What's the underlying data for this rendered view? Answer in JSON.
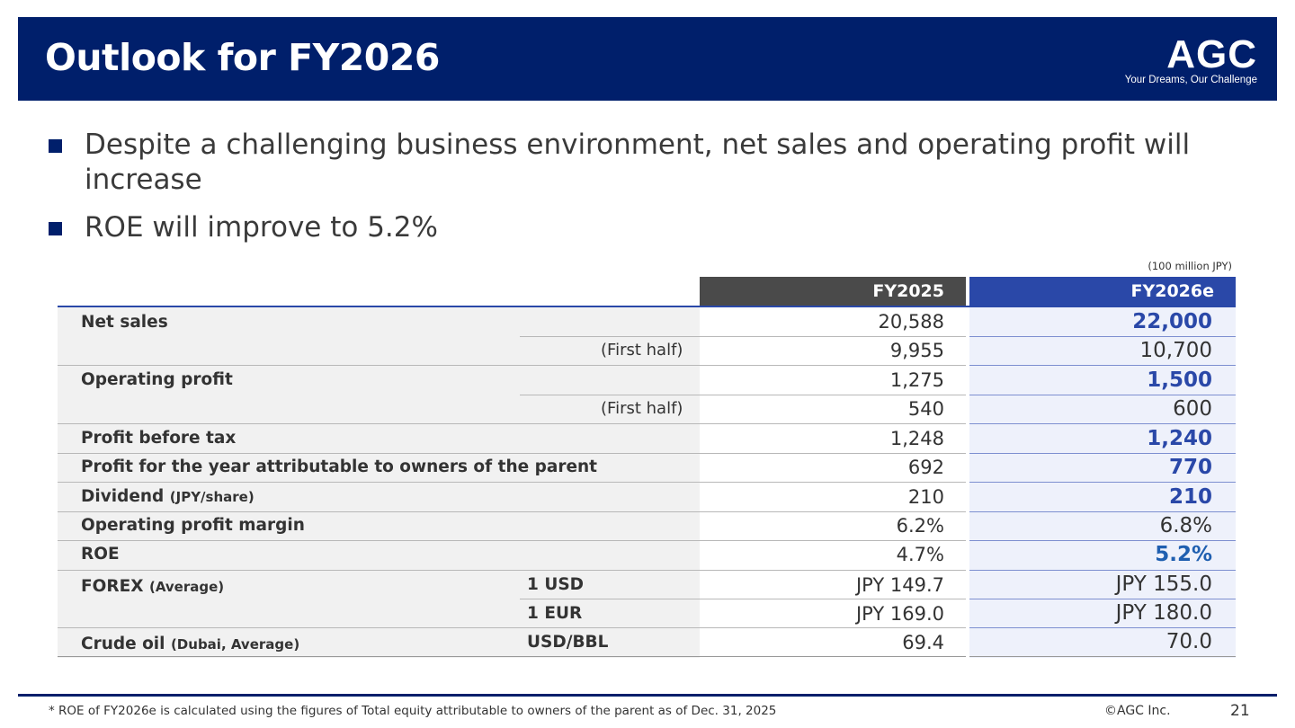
{
  "header": {
    "title": "Outlook for FY2026",
    "logo_mark": "AGC",
    "logo_tagline": "Your Dreams, Our Challenge"
  },
  "bullets": [
    "Despite a challenging business environment, net sales and operating profit will increase",
    "ROE will improve to 5.2%"
  ],
  "table": {
    "unit_note": "(100 million JPY)",
    "col_fy2025": "FY2025",
    "col_fy2026e": "FY2026e",
    "rows": {
      "net_sales": {
        "label": "Net sales",
        "fy2025": "20,588",
        "fy2026e": "22,000"
      },
      "net_sales_h1": {
        "sub": "(First half)",
        "fy2025": "9,955",
        "fy2026e": "10,700"
      },
      "op_profit": {
        "label": "Operating profit",
        "fy2025": "1,275",
        "fy2026e": "1,500"
      },
      "op_profit_h1": {
        "sub": "(First half)",
        "fy2025": "540",
        "fy2026e": "600"
      },
      "pbt": {
        "label": "Profit before tax",
        "fy2025": "1,248",
        "fy2026e": "1,240"
      },
      "profit_owners": {
        "label": "Profit for the year attributable to owners of the parent",
        "fy2025": "692",
        "fy2026e": "770"
      },
      "dividend": {
        "label": "Dividend",
        "label_note": "(JPY/share)",
        "fy2025": "210",
        "fy2026e": "210"
      },
      "op_margin": {
        "label": "Operating profit margin",
        "fy2025": "6.2%",
        "fy2026e": "6.8%"
      },
      "roe": {
        "label": "ROE",
        "fy2025": "4.7%",
        "fy2026e": "5.2%"
      },
      "forex_usd": {
        "label": "FOREX",
        "label_note": "(Average)",
        "unit": "1 USD",
        "fy2025": "JPY  149.7",
        "fy2026e": "JPY  155.0"
      },
      "forex_eur": {
        "unit": "1 EUR",
        "fy2025": "JPY  169.0",
        "fy2026e": "JPY  180.0"
      },
      "crude": {
        "label": "Crude oil",
        "label_note": "(Dubai, Average)",
        "unit": "USD/BBL",
        "fy2025": "69.4",
        "fy2026e": "70.0"
      }
    }
  },
  "footer": {
    "note": "* ROE of FY2026e is calculated using the figures of Total equity attributable to owners of the parent as of Dec. 31, 2025",
    "copyright": "©AGC Inc.",
    "page": "21"
  },
  "colors": {
    "navy": "#001f6b",
    "accent_blue": "#2a48a8",
    "fy2025_header": "#4a4a4a"
  }
}
